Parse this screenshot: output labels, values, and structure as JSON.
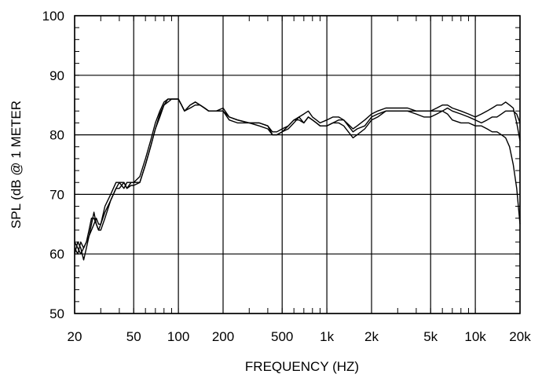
{
  "chart_data": {
    "type": "line",
    "title": "",
    "xlabel": "FREQUENCY  (HZ)",
    "ylabel": "SPL (dB @ 1 METER",
    "xscale": "log",
    "xlim": [
      20,
      20000
    ],
    "ylim": [
      50,
      100
    ],
    "grid": true,
    "x_ticks": [
      {
        "value": 20,
        "label": "20"
      },
      {
        "value": 50,
        "label": "50"
      },
      {
        "value": 100,
        "label": "100"
      },
      {
        "value": 200,
        "label": "200"
      },
      {
        "value": 500,
        "label": "500"
      },
      {
        "value": 1000,
        "label": "1k"
      },
      {
        "value": 2000,
        "label": "2k"
      },
      {
        "value": 5000,
        "label": "5k"
      },
      {
        "value": 10000,
        "label": "10k"
      },
      {
        "value": 20000,
        "label": "20k"
      }
    ],
    "y_ticks": [
      {
        "value": 50,
        "label": "50"
      },
      {
        "value": 60,
        "label": "60"
      },
      {
        "value": 70,
        "label": "70"
      },
      {
        "value": 80,
        "label": "80"
      },
      {
        "value": 90,
        "label": "90"
      },
      {
        "value": 100,
        "label": "100"
      }
    ],
    "series": [
      {
        "x": [
          20,
          21,
          22,
          23,
          24,
          25,
          26,
          27,
          28,
          29,
          30,
          32,
          35,
          38,
          40,
          43,
          45,
          48,
          50,
          55,
          60,
          65,
          70,
          75,
          80,
          85,
          90,
          95,
          100,
          105,
          110,
          120,
          130,
          140,
          150,
          160,
          180,
          200,
          220,
          250,
          300,
          350,
          400,
          430,
          460,
          500,
          550,
          600,
          650,
          700,
          750,
          800,
          850,
          900,
          1000,
          1100,
          1200,
          1300,
          1500,
          1600,
          1800,
          2000,
          2200,
          2500,
          2800,
          3000,
          3500,
          4000,
          4500,
          5000,
          5500,
          6000,
          6500,
          7000,
          8000,
          9000,
          10000,
          11000,
          12000,
          13000,
          14000,
          15000,
          16000,
          17000,
          18000,
          19000,
          20000
        ],
        "values": [
          61,
          60,
          62,
          61,
          62,
          63,
          64,
          65,
          66,
          65,
          65,
          67,
          69,
          71,
          72,
          72,
          71,
          72,
          72,
          72,
          75,
          78,
          81,
          83,
          85,
          86,
          86,
          86,
          86,
          85,
          84,
          85,
          85.5,
          85,
          84.5,
          84,
          84,
          84,
          83,
          82.5,
          82,
          82,
          81.5,
          80.5,
          80.5,
          81,
          81.5,
          82.5,
          83,
          82,
          83,
          82.5,
          82,
          81.5,
          81.5,
          82,
          82.5,
          82.5,
          80.5,
          81,
          81.5,
          83,
          83.5,
          84,
          84,
          84,
          84,
          83.5,
          83,
          83,
          83.5,
          84,
          84.5,
          84,
          83.5,
          83,
          82.5,
          82,
          82.5,
          83,
          83,
          83.5,
          84,
          84,
          84,
          83.5,
          82
        ]
      },
      {
        "x": [
          20,
          21,
          22,
          23,
          24,
          25,
          26,
          27,
          28,
          29,
          30,
          32,
          35,
          38,
          40,
          43,
          45,
          48,
          50,
          55,
          60,
          65,
          70,
          75,
          80,
          85,
          90,
          95,
          100,
          105,
          110,
          120,
          130,
          140,
          150,
          160,
          180,
          200,
          220,
          250,
          300,
          350,
          400,
          430,
          460,
          500,
          550,
          600,
          650,
          700,
          750,
          800,
          850,
          900,
          1000,
          1100,
          1200,
          1300,
          1500,
          1600,
          1800,
          2000,
          2200,
          2500,
          2800,
          3000,
          3500,
          4000,
          4500,
          5000,
          5500,
          6000,
          6500,
          7000,
          8000,
          9000,
          10000,
          11000,
          12000,
          13000,
          14000,
          15000,
          16000,
          17000,
          18000,
          19000,
          20000
        ],
        "values": [
          62,
          61,
          60,
          61,
          62,
          64,
          66,
          66,
          65,
          64,
          65,
          68,
          70,
          72,
          72,
          71,
          72,
          72,
          72,
          73,
          76,
          79,
          82,
          84,
          85.5,
          86,
          86,
          86,
          86,
          85,
          84,
          85,
          85.5,
          85,
          84.5,
          84,
          84,
          84.5,
          83,
          82.5,
          82,
          82,
          81.5,
          80,
          80,
          80.5,
          81,
          82,
          83,
          83.5,
          84,
          83,
          82.5,
          82,
          82.5,
          83,
          83,
          82.5,
          81,
          81.5,
          82.5,
          83.5,
          84,
          84.5,
          84.5,
          84.5,
          84.5,
          84,
          84,
          84,
          84.5,
          85,
          85,
          84.5,
          84,
          83.5,
          83,
          83.5,
          84,
          84.5,
          85,
          85,
          85.5,
          85,
          84.5,
          82,
          79
        ]
      },
      {
        "x": [
          20,
          21,
          22,
          23,
          24,
          25,
          26,
          27,
          28,
          29,
          30,
          32,
          35,
          38,
          40,
          43,
          45,
          48,
          50,
          55,
          60,
          65,
          70,
          75,
          80,
          85,
          90,
          95,
          100,
          105,
          110,
          120,
          130,
          140,
          150,
          160,
          180,
          200,
          220,
          250,
          300,
          350,
          400,
          430,
          460,
          500,
          550,
          600,
          650,
          700,
          750,
          800,
          850,
          900,
          1000,
          1100,
          1200,
          1300,
          1500,
          1600,
          1800,
          2000,
          2200,
          2500,
          2800,
          3000,
          3500,
          4000,
          4500,
          5000,
          5500,
          6000,
          6500,
          7000,
          8000,
          9000,
          10000,
          11000,
          12000,
          13000,
          14000,
          15000,
          16000,
          17000,
          18000,
          19000,
          20000
        ],
        "values": [
          60,
          62,
          61,
          59,
          61,
          63,
          65,
          67,
          65,
          64,
          64,
          66,
          69,
          71,
          71,
          72,
          71,
          71.5,
          71.5,
          72,
          75,
          78,
          81,
          83.5,
          85,
          85.5,
          86,
          86,
          86,
          85,
          84,
          84.5,
          85,
          85,
          84.5,
          84,
          84,
          84,
          82.5,
          82,
          82,
          81.5,
          81,
          80,
          80,
          80.5,
          81.5,
          82.5,
          82.5,
          82,
          83,
          82.5,
          82,
          81.5,
          81.5,
          82,
          82,
          81.5,
          79.5,
          80,
          81,
          82.5,
          83,
          84,
          84,
          84,
          84,
          84,
          84,
          84,
          84,
          84,
          83.5,
          82.5,
          82,
          82,
          81.5,
          81.5,
          81,
          80.5,
          80.5,
          80,
          79.5,
          78,
          75,
          71,
          65
        ]
      }
    ]
  }
}
